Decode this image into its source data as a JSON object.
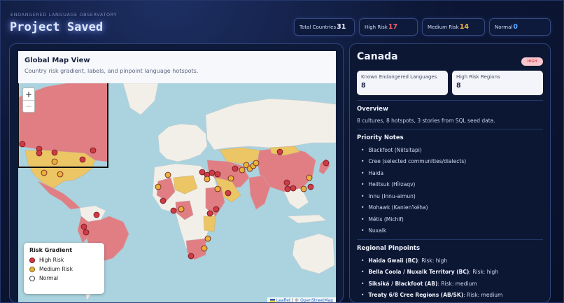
{
  "header": {
    "eyebrow": "ENDANGERED LANGUAGE OBSERVATORY",
    "title": "Project Saved"
  },
  "stats": [
    {
      "label": "Total Countries",
      "value": "31"
    },
    {
      "label": "High Risk",
      "value": "17"
    },
    {
      "label": "Medium Risk",
      "value": "14"
    },
    {
      "label": "Normal",
      "value": "0"
    }
  ],
  "map": {
    "title": "Global Map View",
    "subtitle": "Country risk gradient, labels, and pinpoint language hotspots.",
    "zoom_in": "+",
    "zoom_out": "−",
    "legend": {
      "title": "Risk Gradient",
      "items": [
        "High Risk",
        "Medium Risk",
        "Normal"
      ]
    },
    "attribution": {
      "leaflet": "Leaflet",
      "separator": " | © ",
      "osm": "OpenStreetMap"
    },
    "colors": {
      "high": "#cf3b45",
      "medium": "#e8b13a",
      "normal": "#ffffff",
      "high_fill": "#e07e84",
      "medium_fill": "#ecc665",
      "land": "#f2efe9",
      "water": "#aad3df"
    }
  },
  "detail": {
    "country": "Canada",
    "badge": "HIGH",
    "cards": [
      {
        "label": "Known Endangered Languages",
        "value": "8"
      },
      {
        "label": "High Risk Regions",
        "value": "8"
      }
    ],
    "overview_title": "Overview",
    "overview_text": "8 cultures, 8 hotspots, 3 stories from SQL seed data.",
    "notes_title": "Priority Notes",
    "notes": [
      "Blackfoot (Niitsitapi)",
      "Cree (selected communities/dialects)",
      "Haida",
      "Heiltsuk (Hi̓ɫzaqv)",
      "Innu (Innu-aimun)",
      "Mohawk (Kanien’kéha)",
      "Métis (Michif)",
      "Nuxalk"
    ],
    "pinpoints_title": "Regional Pinpoints",
    "pinpoints": [
      {
        "name": "Haida Gwaii (BC)",
        "risk": ": Risk: high"
      },
      {
        "name": "Bella Coola / Nuxalk Territory (BC)",
        "risk": ": Risk: high"
      },
      {
        "name": "Siksiká / Blackfoot (AB)",
        "risk": ": Risk: medium"
      },
      {
        "name": "Treaty 6/8 Cree Regions (AB/SK)",
        "risk": ": Risk: medium"
      }
    ]
  }
}
